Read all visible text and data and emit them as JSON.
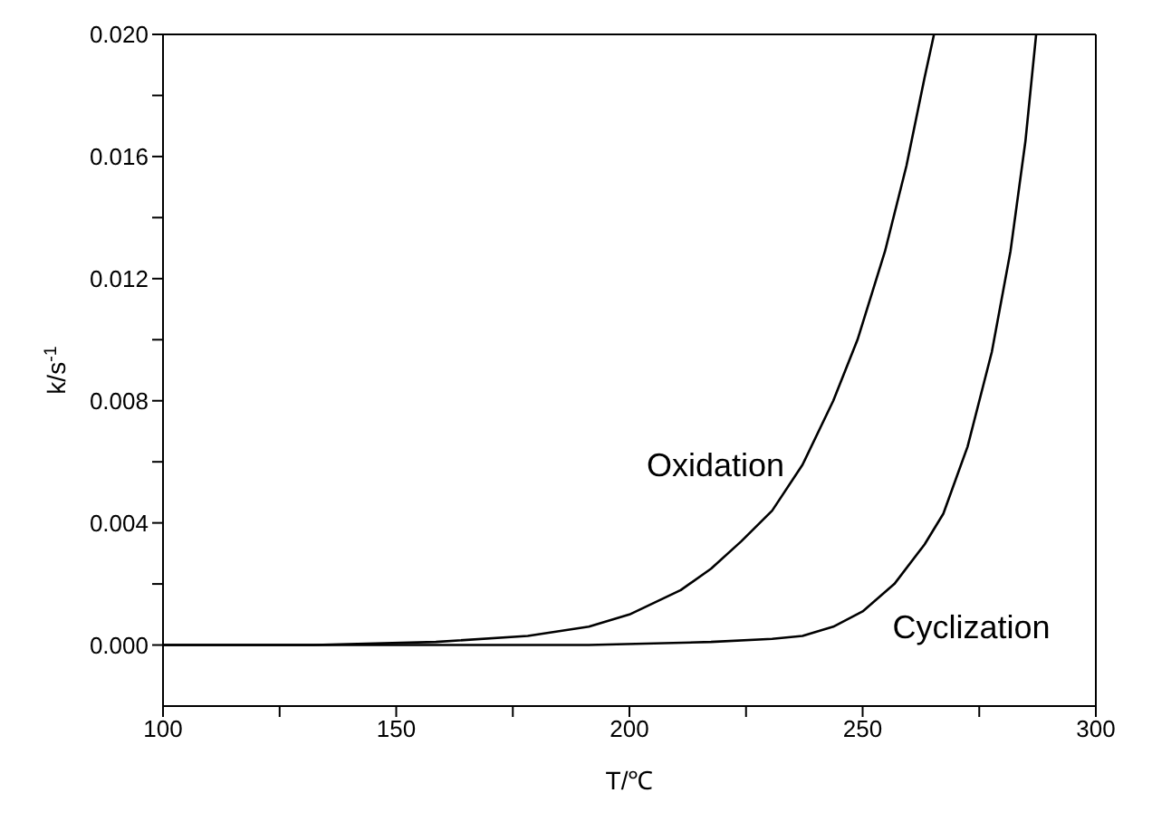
{
  "chart_data": {
    "type": "line",
    "xlabel": "T/℃",
    "ylabel": "k/s$^{-1}$",
    "xlim": [
      100,
      300
    ],
    "ylim": [
      -0.002,
      0.02
    ],
    "xticks": [
      100,
      {
        "value": 125,
        "label": null
      },
      150,
      {
        "value": 175,
        "label": null
      },
      200,
      {
        "value": 225,
        "label": null
      },
      250,
      {
        "value": 275,
        "label": null
      },
      300
    ],
    "yticks": [
      {
        "value": 0,
        "label": "0.000"
      },
      {
        "value": 0.002,
        "label": null
      },
      {
        "value": 0.004,
        "label": "0.004"
      },
      {
        "value": 0.006,
        "label": null
      },
      {
        "value": 0.008,
        "label": "0.008"
      },
      {
        "value": 0.01,
        "label": null
      },
      {
        "value": 0.012,
        "label": "0.012"
      },
      {
        "value": 0.014,
        "label": null
      },
      {
        "value": 0.016,
        "label": "0.016"
      },
      {
        "value": 0.018,
        "label": null
      },
      {
        "value": 0.02,
        "label": "0.020"
      }
    ],
    "marker": "none",
    "line_style": "solid",
    "legend": false,
    "series": [
      {
        "name": "Oxidation",
        "color": "#000000",
        "x": [
          100,
          132.4,
          158.5,
          178.2,
          191.3,
          200,
          211,
          217.5,
          224,
          230.6,
          237.1,
          243.7,
          248.9,
          254.8,
          259.4,
          263.3,
          265.3
        ],
        "values": [
          0,
          0,
          0.0001,
          0.0003,
          0.0006,
          0.001,
          0.0018,
          0.0025,
          0.0034,
          0.0044,
          0.0059,
          0.008,
          0.01,
          0.0129,
          0.0157,
          0.0186,
          0.02
        ]
      },
      {
        "name": "Cyclization",
        "color": "#000000",
        "x": [
          100,
          191.3,
          217.5,
          230.6,
          237.1,
          243.7,
          250,
          256.8,
          263.3,
          267.3,
          272.5,
          277.7,
          281.7,
          284.9,
          287.2
        ],
        "values": [
          0,
          0,
          0.0001,
          0.0002,
          0.0003,
          0.0006,
          0.0011,
          0.002,
          0.0033,
          0.0043,
          0.0065,
          0.0096,
          0.0129,
          0.0165,
          0.02
        ]
      }
    ]
  }
}
